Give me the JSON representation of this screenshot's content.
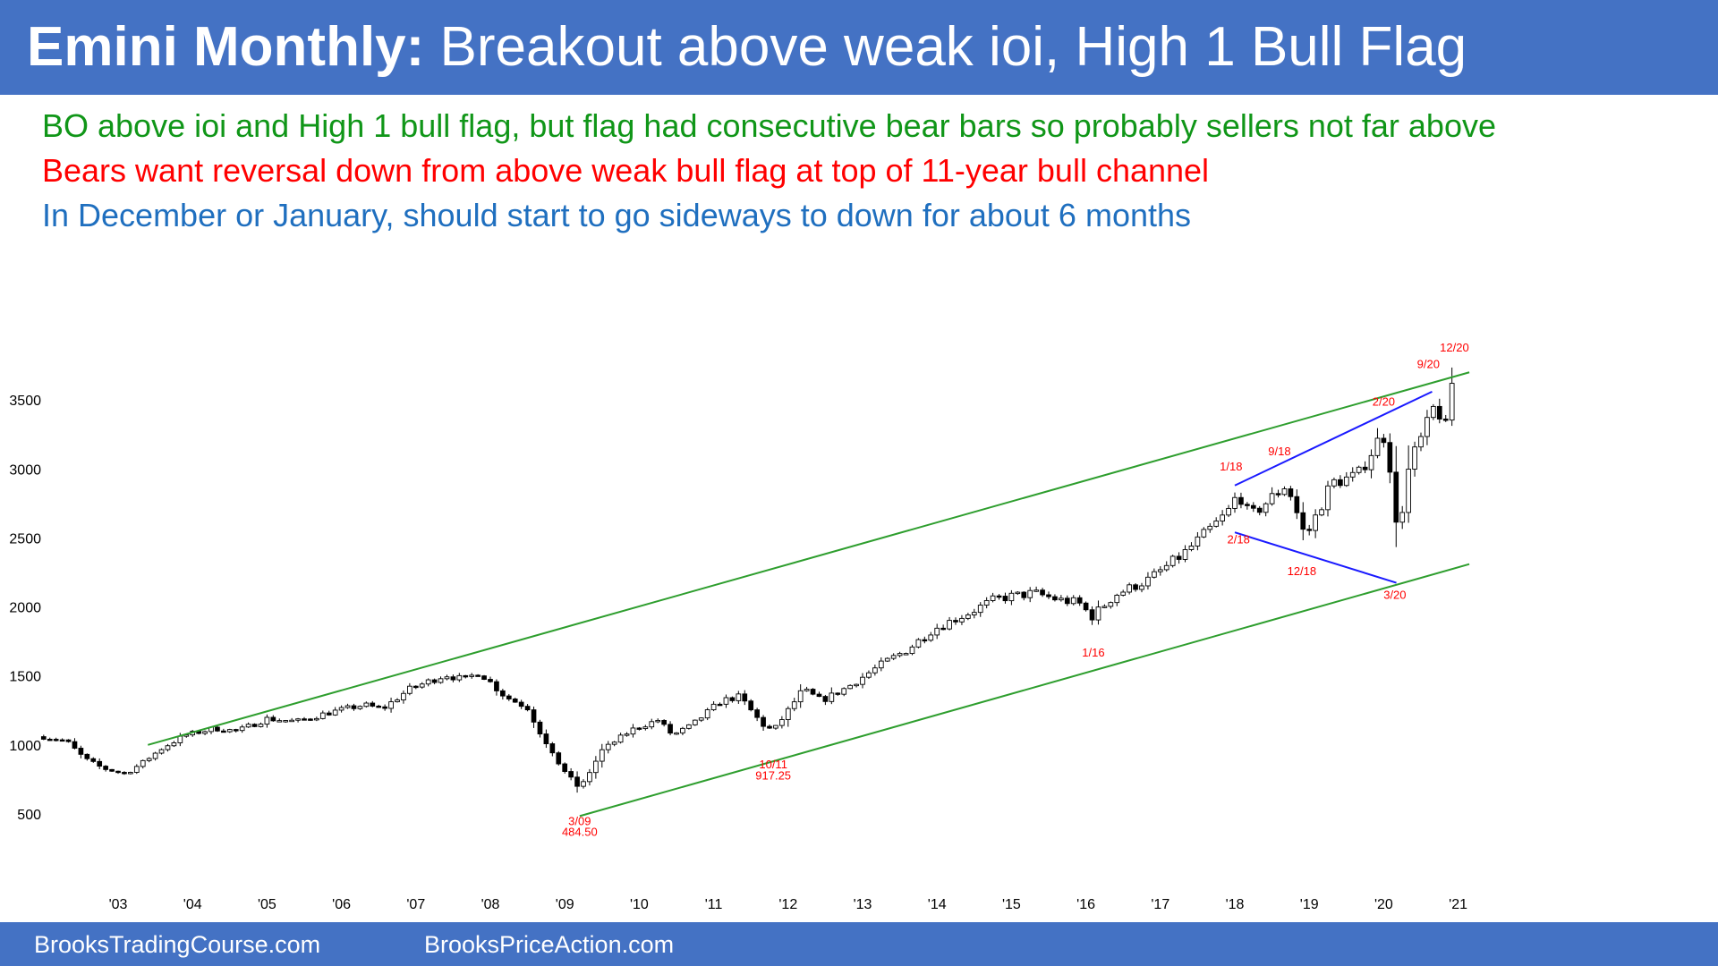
{
  "header": {
    "title_bold": "Emini Monthly:",
    "title_rest": "Breakout above weak ioi, High 1 Bull Flag"
  },
  "notes": [
    {
      "text": "BO above ioi and High 1 bull flag, but flag had consecutive bear bars so probably sellers not far above",
      "color": "#109618"
    },
    {
      "text": "Bears want reversal down from above weak bull flag at top of 11-year bull channel",
      "color": "#ff0000"
    },
    {
      "text": "In December or January, should start to go sideways to down for about 6 months",
      "color": "#1f6fbf"
    }
  ],
  "footer": {
    "left": "BrooksTradingCourse.com",
    "right": "BrooksPriceAction.com"
  },
  "colors": {
    "brand_bar": "#4472c4",
    "channel_line": "#2e9e2e",
    "wedge_line": "#1a1aff",
    "annotation": "#ff0000",
    "candle": "#000000"
  },
  "chart_data": {
    "type": "candlestick",
    "title": "",
    "xlabel": "",
    "ylabel": "",
    "ylim": [
      250,
      3900
    ],
    "yticks": [
      500,
      1000,
      1500,
      2000,
      2500,
      3000,
      3500
    ],
    "x_ticks": [
      "'03",
      "'04",
      "'05",
      "'06",
      "'07",
      "'08",
      "'09",
      "'10",
      "'11",
      "'12",
      "'13",
      "'14",
      "'15",
      "'16",
      "'17",
      "'18",
      "'19",
      "'20",
      "'21"
    ],
    "x_tick_years": [
      2003,
      2004,
      2005,
      2006,
      2007,
      2008,
      2009,
      2010,
      2011,
      2012,
      2013,
      2014,
      2015,
      2016,
      2017,
      2018,
      2019,
      2020,
      2021
    ],
    "grid": false,
    "anchors": [
      [
        2002.0,
        1060
      ],
      [
        2002.3,
        1030
      ],
      [
        2002.55,
        900
      ],
      [
        2002.8,
        830
      ],
      [
        2003.1,
        790
      ],
      [
        2003.35,
        880
      ],
      [
        2003.6,
        980
      ],
      [
        2003.9,
        1070
      ],
      [
        2004.3,
        1120
      ],
      [
        2004.6,
        1100
      ],
      [
        2005.0,
        1190
      ],
      [
        2005.4,
        1170
      ],
      [
        2005.8,
        1230
      ],
      [
        2006.3,
        1290
      ],
      [
        2006.55,
        1260
      ],
      [
        2006.9,
        1400
      ],
      [
        2007.4,
        1510
      ],
      [
        2007.65,
        1470
      ],
      [
        2007.85,
        1530
      ],
      [
        2008.2,
        1350
      ],
      [
        2008.5,
        1270
      ],
      [
        2008.8,
        950
      ],
      [
        2009.0,
        810
      ],
      [
        2009.2,
        680
      ],
      [
        2009.5,
        960
      ],
      [
        2009.9,
        1110
      ],
      [
        2010.25,
        1180
      ],
      [
        2010.45,
        1070
      ],
      [
        2010.7,
        1140
      ],
      [
        2011.1,
        1320
      ],
      [
        2011.35,
        1350
      ],
      [
        2011.65,
        1150
      ],
      [
        2011.8,
        1100
      ],
      [
        2012.2,
        1400
      ],
      [
        2012.45,
        1320
      ],
      [
        2012.8,
        1420
      ],
      [
        2013.3,
        1600
      ],
      [
        2013.6,
        1690
      ],
      [
        2013.95,
        1840
      ],
      [
        2014.4,
        1950
      ],
      [
        2014.8,
        2060
      ],
      [
        2015.3,
        2100
      ],
      [
        2015.65,
        2050
      ],
      [
        2015.9,
        2030
      ],
      [
        2016.08,
        1930
      ],
      [
        2016.4,
        2090
      ],
      [
        2016.85,
        2200
      ],
      [
        2017.3,
        2380
      ],
      [
        2017.9,
        2680
      ],
      [
        2018.05,
        2830
      ],
      [
        2018.2,
        2650
      ],
      [
        2018.7,
        2890
      ],
      [
        2018.95,
        2500
      ],
      [
        2019.3,
        2900
      ],
      [
        2019.65,
        2950
      ],
      [
        2019.95,
        3230
      ],
      [
        2020.05,
        3240
      ],
      [
        2020.15,
        2580
      ],
      [
        2020.22,
        2620
      ],
      [
        2020.35,
        3040
      ],
      [
        2020.55,
        3270
      ],
      [
        2020.7,
        3480
      ],
      [
        2020.78,
        3350
      ],
      [
        2020.85,
        3280
      ],
      [
        2020.92,
        3640
      ],
      [
        2020.96,
        3680
      ]
    ],
    "lines": [
      {
        "name": "channel-top",
        "from": [
          2003.4,
          1000
        ],
        "to": [
          2021.15,
          3700
        ]
      },
      {
        "name": "channel-bottom",
        "from": [
          2009.2,
          484.5
        ],
        "to": [
          2021.15,
          2310
        ]
      },
      {
        "name": "wedge-top",
        "from": [
          2018.0,
          2880
        ],
        "to": [
          2020.65,
          3560
        ]
      },
      {
        "name": "wedge-bottom",
        "from": [
          2018.0,
          2540
        ],
        "to": [
          2020.17,
          2175
        ]
      }
    ],
    "annotations": [
      {
        "text": "12/20",
        "x": 2020.95,
        "y": 3850
      },
      {
        "text": "9/20",
        "x": 2020.6,
        "y": 3730
      },
      {
        "text": "2/20",
        "x": 2020.0,
        "y": 3460
      },
      {
        "text": "9/18",
        "x": 2018.6,
        "y": 3100
      },
      {
        "text": "1/18",
        "x": 2017.95,
        "y": 2990
      },
      {
        "text": "2/18",
        "x": 2018.05,
        "y": 2460
      },
      {
        "text": "12/18",
        "x": 2018.9,
        "y": 2230
      },
      {
        "text": "3/20",
        "x": 2020.15,
        "y": 2060
      },
      {
        "text": "1/16",
        "x": 2016.1,
        "y": 1640
      },
      {
        "text": "10/11",
        "x": 2011.8,
        "y": 830
      },
      {
        "text": "917.25",
        "x": 2011.8,
        "y": 750
      },
      {
        "text": "3/09",
        "x": 2009.2,
        "y": 420
      },
      {
        "text": "484.50",
        "x": 2009.2,
        "y": 340
      }
    ]
  }
}
